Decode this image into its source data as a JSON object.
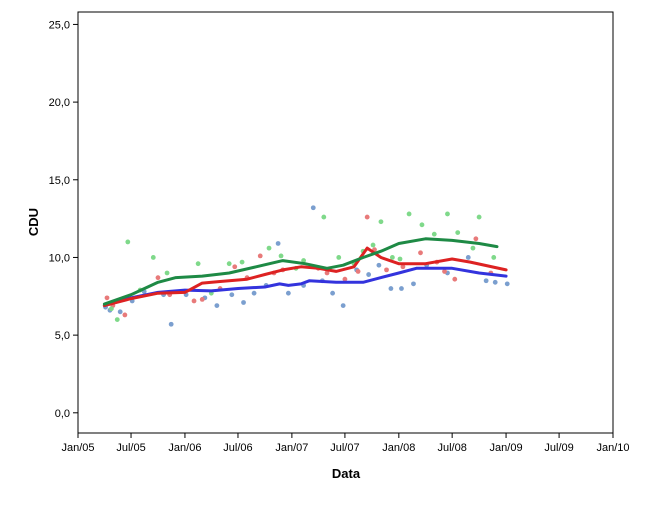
{
  "chart_data": {
    "type": "scatter",
    "title": "",
    "xlabel": "Data",
    "ylabel": "CDU",
    "x_type": "date",
    "xlim": [
      "2005-01-01",
      "2010-01-01"
    ],
    "ylim": [
      -1.3,
      25.8
    ],
    "x_ticks": [
      {
        "date": "2005-01-01",
        "label": "Jan/05"
      },
      {
        "date": "2005-07-01",
        "label": "Jul/05"
      },
      {
        "date": "2006-01-01",
        "label": "Jan/06"
      },
      {
        "date": "2006-07-01",
        "label": "Jul/06"
      },
      {
        "date": "2007-01-01",
        "label": "Jan/07"
      },
      {
        "date": "2007-07-01",
        "label": "Jul/07"
      },
      {
        "date": "2008-01-01",
        "label": "Jan/08"
      },
      {
        "date": "2008-07-01",
        "label": "Jul/08"
      },
      {
        "date": "2009-01-01",
        "label": "Jan/09"
      },
      {
        "date": "2009-07-01",
        "label": "Jul/09"
      },
      {
        "date": "2010-01-01",
        "label": "Jan/10"
      }
    ],
    "y_ticks": [
      {
        "value": 0,
        "label": "0,0"
      },
      {
        "value": 5,
        "label": "5,0"
      },
      {
        "value": 10,
        "label": "10,0"
      },
      {
        "value": 15,
        "label": "15,0"
      },
      {
        "value": 20,
        "label": "20,0"
      },
      {
        "value": 25,
        "label": "25,0"
      }
    ],
    "grid": false,
    "legend": "none",
    "series": [
      {
        "color_points": "#7b9fcf",
        "color_line": "#3333dd",
        "points": [
          [
            "2005-04-05",
            6.8
          ],
          [
            "2005-04-20",
            6.6
          ],
          [
            "2005-05-25",
            6.5
          ],
          [
            "2005-07-05",
            7.2
          ],
          [
            "2005-08-15",
            7.8
          ],
          [
            "2005-10-20",
            7.6
          ],
          [
            "2005-11-15",
            5.7
          ],
          [
            "2006-01-05",
            7.6
          ],
          [
            "2006-03-10",
            7.4
          ],
          [
            "2006-04-20",
            6.9
          ],
          [
            "2006-06-10",
            7.6
          ],
          [
            "2006-07-20",
            7.1
          ],
          [
            "2006-08-25",
            7.7
          ],
          [
            "2006-10-05",
            8.2
          ],
          [
            "2006-11-15",
            10.9
          ],
          [
            "2006-12-20",
            7.7
          ],
          [
            "2007-02-10",
            8.2
          ],
          [
            "2007-03-15",
            13.2
          ],
          [
            "2007-04-15",
            8.5
          ],
          [
            "2007-05-20",
            7.7
          ],
          [
            "2007-06-25",
            6.9
          ],
          [
            "2007-08-10",
            9.2
          ],
          [
            "2007-09-20",
            8.9
          ],
          [
            "2007-10-25",
            9.5
          ],
          [
            "2007-12-05",
            8.0
          ],
          [
            "2008-01-10",
            8.0
          ],
          [
            "2008-02-20",
            8.3
          ],
          [
            "2008-04-05",
            9.5
          ],
          [
            "2008-06-15",
            9.0
          ],
          [
            "2008-08-25",
            10.0
          ],
          [
            "2008-10-25",
            8.5
          ],
          [
            "2008-11-25",
            8.4
          ],
          [
            "2009-01-05",
            8.3
          ]
        ],
        "trend": [
          [
            "2005-04-01",
            6.9
          ],
          [
            "2005-07-01",
            7.4
          ],
          [
            "2005-10-01",
            7.75
          ],
          [
            "2006-01-01",
            7.9
          ],
          [
            "2006-04-01",
            7.85
          ],
          [
            "2006-07-01",
            8.0
          ],
          [
            "2006-10-01",
            8.1
          ],
          [
            "2006-11-20",
            8.3
          ],
          [
            "2006-12-20",
            8.2
          ],
          [
            "2007-02-01",
            8.3
          ],
          [
            "2007-03-01",
            8.5
          ],
          [
            "2007-06-01",
            8.4
          ],
          [
            "2007-09-01",
            8.4
          ],
          [
            "2007-11-01",
            8.7
          ],
          [
            "2008-01-01",
            9.0
          ],
          [
            "2008-03-01",
            9.3
          ],
          [
            "2008-07-01",
            9.3
          ],
          [
            "2008-10-01",
            9.0
          ],
          [
            "2009-01-01",
            8.8
          ]
        ]
      },
      {
        "color_points": "#e87a7a",
        "color_line": "#dd2222",
        "points": [
          [
            "2005-04-10",
            7.4
          ],
          [
            "2005-04-30",
            6.9
          ],
          [
            "2005-06-10",
            6.3
          ],
          [
            "2005-10-01",
            8.7
          ],
          [
            "2005-11-10",
            7.6
          ],
          [
            "2006-02-01",
            7.2
          ],
          [
            "2006-03-01",
            7.3
          ],
          [
            "2006-05-01",
            8.0
          ],
          [
            "2006-06-20",
            9.4
          ],
          [
            "2006-08-01",
            8.7
          ],
          [
            "2006-09-15",
            10.1
          ],
          [
            "2006-11-01",
            9.0
          ],
          [
            "2006-12-01",
            9.2
          ],
          [
            "2007-04-01",
            9.3
          ],
          [
            "2007-05-01",
            9.0
          ],
          [
            "2007-07-01",
            8.6
          ],
          [
            "2007-08-15",
            9.1
          ],
          [
            "2007-09-15",
            12.6
          ],
          [
            "2007-10-10",
            10.5
          ],
          [
            "2007-11-20",
            9.2
          ],
          [
            "2008-01-15",
            9.4
          ],
          [
            "2008-03-15",
            10.3
          ],
          [
            "2008-05-10",
            9.7
          ],
          [
            "2008-06-05",
            9.1
          ],
          [
            "2008-07-10",
            8.6
          ],
          [
            "2008-09-20",
            11.2
          ],
          [
            "2008-11-10",
            9.0
          ]
        ],
        "trend": [
          [
            "2005-04-01",
            6.9
          ],
          [
            "2005-07-01",
            7.35
          ],
          [
            "2005-10-01",
            7.7
          ],
          [
            "2006-01-01",
            7.75
          ],
          [
            "2006-03-01",
            8.35
          ],
          [
            "2006-05-01",
            8.45
          ],
          [
            "2006-08-01",
            8.6
          ],
          [
            "2006-10-01",
            8.9
          ],
          [
            "2006-12-01",
            9.2
          ],
          [
            "2007-02-01",
            9.4
          ],
          [
            "2007-04-01",
            9.3
          ],
          [
            "2007-06-01",
            9.1
          ],
          [
            "2007-08-01",
            9.4
          ],
          [
            "2007-09-15",
            10.6
          ],
          [
            "2007-11-01",
            10.0
          ],
          [
            "2008-01-01",
            9.6
          ],
          [
            "2008-04-01",
            9.6
          ],
          [
            "2008-07-01",
            9.9
          ],
          [
            "2008-09-01",
            9.7
          ],
          [
            "2009-01-01",
            9.2
          ]
        ]
      },
      {
        "color_points": "#7fd98a",
        "color_line": "#1e8a45",
        "points": [
          [
            "2005-04-25",
            6.7
          ],
          [
            "2005-05-15",
            6.0
          ],
          [
            "2005-06-20",
            11.0
          ],
          [
            "2005-08-01",
            7.9
          ],
          [
            "2005-09-15",
            10.0
          ],
          [
            "2005-11-01",
            9.0
          ],
          [
            "2006-02-15",
            9.6
          ],
          [
            "2006-04-01",
            7.7
          ],
          [
            "2006-06-01",
            9.6
          ],
          [
            "2006-07-15",
            9.7
          ],
          [
            "2006-10-15",
            10.6
          ],
          [
            "2006-11-25",
            10.1
          ],
          [
            "2007-01-15",
            9.3
          ],
          [
            "2007-02-10",
            9.8
          ],
          [
            "2007-04-20",
            12.6
          ],
          [
            "2007-06-10",
            10.0
          ],
          [
            "2007-08-01",
            9.6
          ],
          [
            "2007-09-01",
            10.4
          ],
          [
            "2007-10-05",
            10.8
          ],
          [
            "2007-11-01",
            12.3
          ],
          [
            "2007-12-10",
            10.0
          ],
          [
            "2008-01-05",
            9.9
          ],
          [
            "2008-02-05",
            12.8
          ],
          [
            "2008-03-20",
            12.1
          ],
          [
            "2008-05-01",
            11.5
          ],
          [
            "2008-06-15",
            12.8
          ],
          [
            "2008-07-20",
            11.6
          ],
          [
            "2008-09-10",
            10.6
          ],
          [
            "2008-10-01",
            12.6
          ],
          [
            "2008-11-20",
            10.0
          ]
        ],
        "trend": [
          [
            "2005-04-01",
            7.0
          ],
          [
            "2005-07-01",
            7.6
          ],
          [
            "2005-10-01",
            8.4
          ],
          [
            "2005-12-01",
            8.7
          ],
          [
            "2006-03-01",
            8.8
          ],
          [
            "2006-06-01",
            9.0
          ],
          [
            "2006-09-01",
            9.4
          ],
          [
            "2006-12-01",
            9.8
          ],
          [
            "2007-02-15",
            9.6
          ],
          [
            "2007-05-01",
            9.3
          ],
          [
            "2007-06-25",
            9.5
          ],
          [
            "2007-09-01",
            10.0
          ],
          [
            "2007-11-01",
            10.4
          ],
          [
            "2008-01-01",
            10.9
          ],
          [
            "2008-04-01",
            11.2
          ],
          [
            "2008-07-01",
            11.1
          ],
          [
            "2008-10-01",
            10.9
          ],
          [
            "2008-12-01",
            10.7
          ]
        ]
      }
    ]
  }
}
